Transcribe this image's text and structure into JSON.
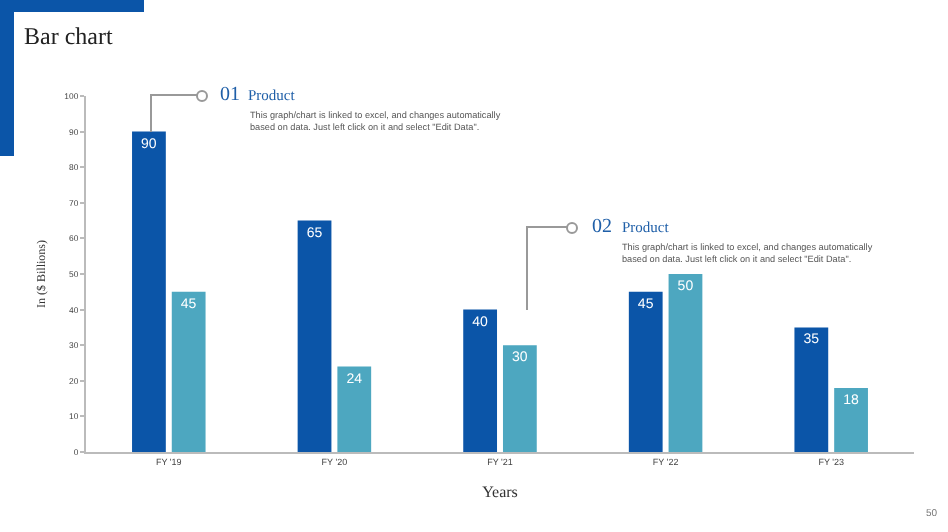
{
  "chart_data": {
    "type": "bar",
    "title": "Bar chart",
    "xlabel": "Years",
    "ylabel": "In ($ Billions)",
    "categories": [
      "FY '19",
      "FY '20",
      "FY '21",
      "FY '22",
      "FY '23"
    ],
    "series": [
      {
        "color": "#0b55a8",
        "values": [
          90,
          65,
          40,
          45,
          35
        ]
      },
      {
        "color": "#4da7c0",
        "values": [
          45,
          24,
          30,
          50,
          18
        ]
      }
    ],
    "ylim": [
      0,
      100
    ],
    "yticks": [
      0,
      10,
      20,
      30,
      40,
      50,
      60,
      70,
      80,
      90,
      100
    ],
    "grid": false,
    "data_labels": true,
    "annotations": [
      "01",
      "Product",
      "This graph/chart is linked to excel, and changes automatically\nbased on data. Just left click on it and select \"Edit Data\".",
      "02",
      "Product",
      "This graph/chart is linked to excel, and changes automatically\nbased on data. Just left click on it and select \"Edit Data\".",
      "50"
    ]
  }
}
